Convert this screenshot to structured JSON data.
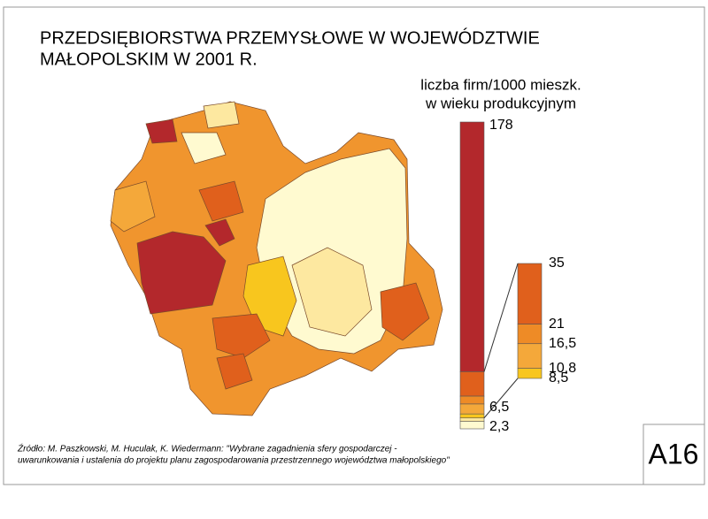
{
  "title": [
    "PRZEDSIĘBIORSTWA PRZEMYSŁOWE W WOJEWÓDZTWIE",
    "MAŁOPOLSKIM W 2001 R."
  ],
  "legend": {
    "title": [
      "liczba firm/1000 mieszk.",
      "w wieku produkcyjnym"
    ],
    "breaks": [
      178,
      35,
      21,
      {
        "value": 16.5,
        "label": "16,5"
      },
      {
        "value": 10.8,
        "label": "10,8"
      },
      {
        "value": 8.5,
        "label": "8,5"
      },
      {
        "value": 6.5,
        "label": "6,5"
      },
      {
        "value": 2.3,
        "label": "2,3"
      }
    ],
    "colors": [
      "#b3282c",
      "#e0601c",
      "#ee8b26",
      "#f4a83a",
      "#f8c61e",
      "#fde8a0",
      "#fffad0"
    ]
  },
  "source": [
    "Źródło: M. Paszkowski, M. Huculak, K. Wiedermann: \"Wybrane zagadnienia sfery gospodarczej -",
    "uwarunkowania i ustalenia do projektu planu zagospodarowania przestrzennego województwa małopolskiego\""
  ],
  "sheet_id": "A16"
}
